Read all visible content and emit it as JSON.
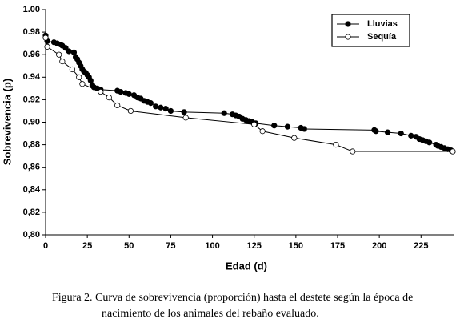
{
  "chart_data": {
    "type": "line",
    "xlabel": "Edad (d)",
    "ylabel": "Sobrevivencia (p)",
    "caption": "Figura 2. Curva de sobrevivencia (proporción) hasta el destete según la época de nacimiento de los animales del rebaño evaluado.",
    "xlim": [
      0,
      245
    ],
    "xticks": [
      0,
      25,
      50,
      75,
      100,
      125,
      150,
      175,
      200,
      225
    ],
    "ylim": [
      0.8,
      1.0
    ],
    "yticks": [
      {
        "value": 0.8,
        "label": "0,80"
      },
      {
        "value": 0.82,
        "label": "0,82"
      },
      {
        "value": 0.84,
        "label": "0,84"
      },
      {
        "value": 0.86,
        "label": "0,86"
      },
      {
        "value": 0.88,
        "label": "0,88"
      },
      {
        "value": 0.9,
        "label": "0.90"
      },
      {
        "value": 0.92,
        "label": "0.92"
      },
      {
        "value": 0.94,
        "label": "0.94"
      },
      {
        "value": 0.96,
        "label": "0.96"
      },
      {
        "value": 0.98,
        "label": "0.98"
      },
      {
        "value": 1.0,
        "label": "1.00"
      }
    ],
    "legend": "upper right",
    "series": [
      {
        "name": "Lluvias",
        "color": "#000000",
        "marker": "filled",
        "x": [
          0,
          1,
          5,
          7,
          9,
          10,
          12,
          14,
          17,
          18,
          19,
          20,
          21,
          22,
          23,
          24,
          25,
          26,
          27,
          28,
          29,
          31,
          33,
          43,
          45,
          48,
          50,
          53,
          55,
          57,
          59,
          61,
          63,
          66,
          69,
          72,
          75,
          83,
          107,
          112,
          114,
          116,
          118,
          120,
          122,
          124,
          126,
          137,
          145,
          153,
          155,
          197,
          198,
          205,
          213,
          219,
          222,
          224,
          226,
          228,
          230,
          234,
          235,
          237,
          239,
          241,
          243,
          244
        ],
        "values": [
          0.977,
          0.972,
          0.971,
          0.97,
          0.969,
          0.968,
          0.966,
          0.963,
          0.962,
          0.958,
          0.956,
          0.953,
          0.95,
          0.947,
          0.945,
          0.944,
          0.942,
          0.94,
          0.937,
          0.933,
          0.931,
          0.93,
          0.929,
          0.928,
          0.927,
          0.926,
          0.925,
          0.924,
          0.922,
          0.921,
          0.919,
          0.918,
          0.917,
          0.914,
          0.913,
          0.912,
          0.91,
          0.909,
          0.908,
          0.907,
          0.906,
          0.905,
          0.903,
          0.902,
          0.901,
          0.9,
          0.899,
          0.897,
          0.896,
          0.895,
          0.894,
          0.893,
          0.892,
          0.891,
          0.89,
          0.888,
          0.887,
          0.885,
          0.884,
          0.883,
          0.882,
          0.88,
          0.879,
          0.878,
          0.877,
          0.876,
          0.875,
          0.874
        ]
      },
      {
        "name": "Sequía",
        "color": "#000000",
        "marker": "open",
        "x": [
          0,
          1,
          8,
          10,
          16,
          20,
          22,
          33,
          38,
          43,
          51,
          84,
          125,
          130,
          149,
          174,
          184,
          244
        ],
        "values": [
          0.975,
          0.967,
          0.96,
          0.954,
          0.947,
          0.94,
          0.934,
          0.927,
          0.922,
          0.915,
          0.91,
          0.904,
          0.898,
          0.892,
          0.886,
          0.88,
          0.874,
          0.874
        ]
      }
    ]
  }
}
